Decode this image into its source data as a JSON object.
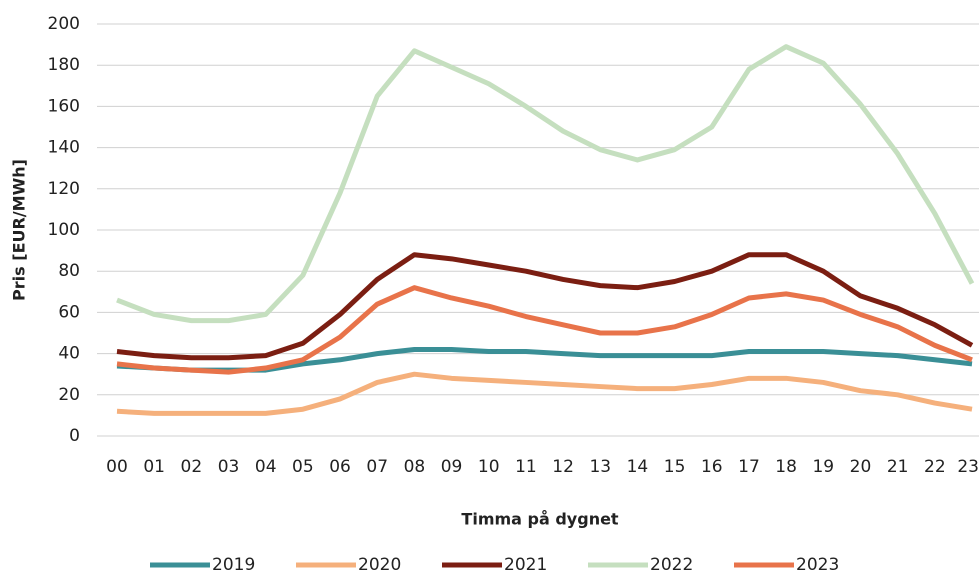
{
  "chart_data": {
    "type": "line",
    "ylabel": "Pris [EUR/MWh]",
    "xlabel": "Timma på dygnet",
    "categories": [
      "00",
      "01",
      "02",
      "03",
      "04",
      "05",
      "06",
      "07",
      "08",
      "09",
      "10",
      "11",
      "12",
      "13",
      "14",
      "15",
      "16",
      "17",
      "18",
      "19",
      "20",
      "21",
      "22",
      "23"
    ],
    "series": [
      {
        "name": "2019",
        "color": "#3a8f96",
        "values": [
          34,
          33,
          32,
          32,
          32,
          35,
          37,
          40,
          42,
          42,
          41,
          41,
          40,
          39,
          39,
          39,
          39,
          41,
          41,
          41,
          40,
          39,
          37,
          35
        ]
      },
      {
        "name": "2020",
        "color": "#f5b07c",
        "values": [
          12,
          11,
          11,
          11,
          11,
          13,
          18,
          26,
          30,
          28,
          27,
          26,
          25,
          24,
          23,
          23,
          25,
          28,
          28,
          26,
          22,
          20,
          16,
          13
        ]
      },
      {
        "name": "2021",
        "color": "#7b1e12",
        "values": [
          41,
          39,
          38,
          38,
          39,
          45,
          59,
          76,
          88,
          86,
          83,
          80,
          76,
          73,
          72,
          75,
          80,
          88,
          88,
          80,
          68,
          62,
          54,
          44
        ]
      },
      {
        "name": "2022",
        "color": "#c5dfbf",
        "values": [
          66,
          59,
          56,
          56,
          59,
          78,
          118,
          165,
          187,
          179,
          171,
          160,
          148,
          139,
          134,
          139,
          150,
          178,
          189,
          181,
          161,
          137,
          108,
          74
        ]
      },
      {
        "name": "2023",
        "color": "#e8734a",
        "values": [
          35,
          33,
          32,
          31,
          33,
          37,
          48,
          64,
          72,
          67,
          63,
          58,
          54,
          50,
          50,
          53,
          59,
          67,
          69,
          66,
          59,
          53,
          44,
          37
        ]
      }
    ],
    "ylim": [
      0,
      200
    ],
    "yticks": [
      0,
      20,
      40,
      60,
      80,
      100,
      120,
      140,
      160,
      180,
      200
    ],
    "grid": true,
    "legend": "bottom"
  }
}
